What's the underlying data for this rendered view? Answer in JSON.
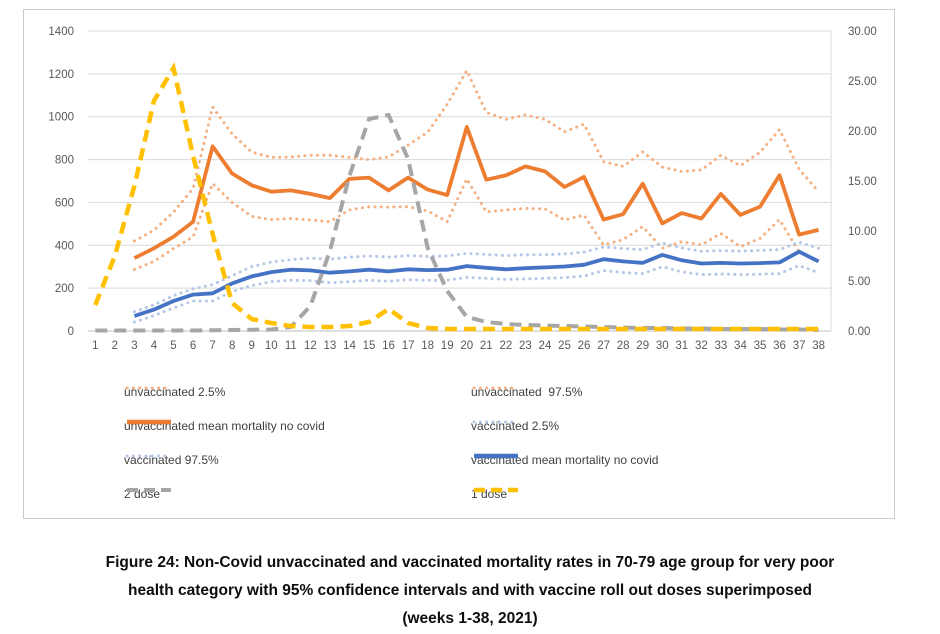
{
  "chart": {
    "border_color": "#c9c9c9",
    "grid_color": "#d9d9d9",
    "axis_line_color": "#bfbfbf",
    "tick_text_color": "#595959",
    "legend_text_color": "#404040",
    "background": "#ffffff"
  },
  "chart_data": {
    "type": "line",
    "title": "",
    "xlabel": "",
    "ylabel_left": "",
    "ylabel_right": "",
    "grid": true,
    "legend_position": "bottom-two-columns",
    "categories": [
      "1",
      "2",
      "3",
      "4",
      "5",
      "6",
      "7",
      "8",
      "9",
      "10",
      "11",
      "12",
      "13",
      "14",
      "15",
      "16",
      "17",
      "18",
      "19",
      "20",
      "21",
      "22",
      "23",
      "24",
      "25",
      "26",
      "27",
      "28",
      "29",
      "30",
      "31",
      "32",
      "33",
      "34",
      "35",
      "36",
      "37",
      "38"
    ],
    "left_axis": {
      "min": 0,
      "max": 1400,
      "step": 200,
      "tick_labels": [
        "0",
        "200",
        "400",
        "600",
        "800",
        "1000",
        "1200",
        "1400"
      ]
    },
    "right_axis": {
      "min": 0,
      "max": 30,
      "step": 5,
      "tick_labels": [
        "0.00",
        "5.00",
        "10.00",
        "15.00",
        "20.00",
        "25.00",
        "30.00"
      ]
    },
    "series": [
      {
        "name": "unvaccinated 2.5%",
        "style": "dotted",
        "color": "#F4B183",
        "axis": "left",
        "values": [
          null,
          null,
          287,
          325,
          385,
          440,
          688,
          600,
          535,
          520,
          525,
          518,
          510,
          565,
          580,
          578,
          580,
          560,
          510,
          710,
          556,
          565,
          572,
          570,
          518,
          541,
          402,
          426,
          487,
          386,
          417,
          402,
          455,
          394,
          432,
          520,
          370,
          320
        ]
      },
      {
        "name": "unvaccinated  97.5%",
        "style": "dotted",
        "color": "#F4B183",
        "axis": "left",
        "values": [
          null,
          null,
          420,
          470,
          555,
          665,
          1045,
          920,
          835,
          810,
          812,
          820,
          820,
          810,
          800,
          812,
          868,
          928,
          1058,
          1215,
          1020,
          988,
          1008,
          988,
          930,
          965,
          790,
          768,
          836,
          765,
          745,
          752,
          820,
          772,
          834,
          940,
          755,
          650
        ]
      },
      {
        "name": "unvaccinated mean mortality no covid",
        "style": "solid",
        "color": "#ED7D31",
        "axis": "left",
        "values": [
          null,
          null,
          340,
          386,
          440,
          510,
          862,
          735,
          680,
          650,
          656,
          640,
          620,
          710,
          716,
          656,
          716,
          660,
          634,
          952,
          706,
          726,
          768,
          745,
          672,
          719,
          520,
          545,
          688,
          502,
          550,
          525,
          640,
          542,
          580,
          727,
          450,
          472
        ]
      },
      {
        "name": "vaccinated 2.5%",
        "style": "dotted",
        "color": "#B4C7E7",
        "axis": "left",
        "values": [
          null,
          null,
          42,
          72,
          108,
          140,
          140,
          185,
          212,
          230,
          237,
          235,
          225,
          230,
          237,
          232,
          240,
          236,
          237,
          250,
          246,
          241,
          243,
          246,
          249,
          256,
          282,
          273,
          268,
          300,
          276,
          263,
          266,
          263,
          265,
          268,
          305,
          272
        ]
      },
      {
        "name": "vaccinated 97.5%",
        "style": "dotted",
        "color": "#B4C7E7",
        "axis": "left",
        "values": [
          null,
          null,
          90,
          122,
          165,
          197,
          216,
          258,
          300,
          322,
          333,
          340,
          335,
          345,
          350,
          345,
          352,
          348,
          350,
          362,
          357,
          352,
          356,
          356,
          360,
          368,
          392,
          385,
          380,
          410,
          388,
          372,
          375,
          373,
          376,
          380,
          415,
          386
        ]
      },
      {
        "name": "vaccinated mean mortality no covid",
        "style": "solid",
        "color": "#4472C4",
        "axis": "left",
        "values": [
          null,
          null,
          70,
          100,
          140,
          170,
          176,
          222,
          255,
          275,
          286,
          283,
          272,
          278,
          286,
          278,
          288,
          284,
          286,
          303,
          295,
          288,
          293,
          297,
          301,
          309,
          335,
          325,
          318,
          355,
          330,
          315,
          318,
          315,
          317,
          320,
          370,
          325
        ]
      },
      {
        "name": "2 dose",
        "style": "dashed",
        "color": "#A6A6A6",
        "axis": "right",
        "values": [
          0.05,
          0.05,
          0.05,
          0.05,
          0.05,
          0.05,
          0.08,
          0.1,
          0.12,
          0.15,
          0.4,
          2.5,
          8,
          15.5,
          21.2,
          21.6,
          17.2,
          8.3,
          4,
          1.4,
          0.9,
          0.7,
          0.6,
          0.55,
          0.5,
          0.45,
          0.4,
          0.35,
          0.3,
          0.3,
          0.25,
          0.25,
          0.2,
          0.2,
          0.2,
          0.15,
          0.15,
          0.1
        ]
      },
      {
        "name": "1 dose",
        "style": "dashed",
        "color": "#FFC000",
        "axis": "right",
        "values": [
          2.6,
          7.5,
          14.5,
          23,
          26.3,
          17.5,
          9.7,
          2.8,
          1.2,
          0.8,
          0.5,
          0.4,
          0.4,
          0.5,
          0.9,
          2.2,
          0.8,
          0.3,
          0.2,
          0.2,
          0.2,
          0.2,
          0.2,
          0.2,
          0.2,
          0.2,
          0.2,
          0.2,
          0.2,
          0.2,
          0.2,
          0.2,
          0.2,
          0.2,
          0.2,
          0.2,
          0.2,
          0.2
        ]
      }
    ]
  },
  "caption": {
    "lines": [
      "Figure 24: Non-Covid unvaccinated and vaccinated mortality rates in 70-79 age group for very poor",
      "health category with 95% confidence intervals and with vaccine roll out doses superimposed",
      "(weeks 1-38, 2021)"
    ]
  }
}
